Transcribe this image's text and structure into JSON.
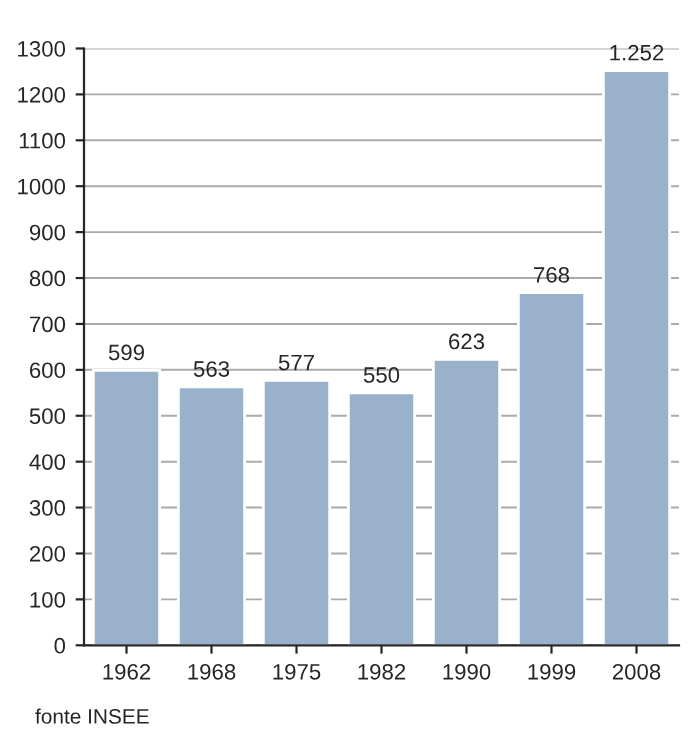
{
  "chart_data": {
    "type": "bar",
    "categories": [
      "1962",
      "1968",
      "1975",
      "1982",
      "1990",
      "1999",
      "2008"
    ],
    "values": [
      599,
      563,
      577,
      550,
      623,
      768,
      1252
    ],
    "value_labels": [
      "599",
      "563",
      "577",
      "550",
      "623",
      "768",
      "1.252"
    ],
    "color": "#99b1cb",
    "ylim": [
      0,
      1300
    ],
    "yticks": [
      0,
      100,
      200,
      300,
      400,
      500,
      600,
      700,
      800,
      900,
      1000,
      1100,
      1200,
      1300
    ],
    "grid": "y",
    "annotations": [
      "fonte INSEE"
    ]
  }
}
